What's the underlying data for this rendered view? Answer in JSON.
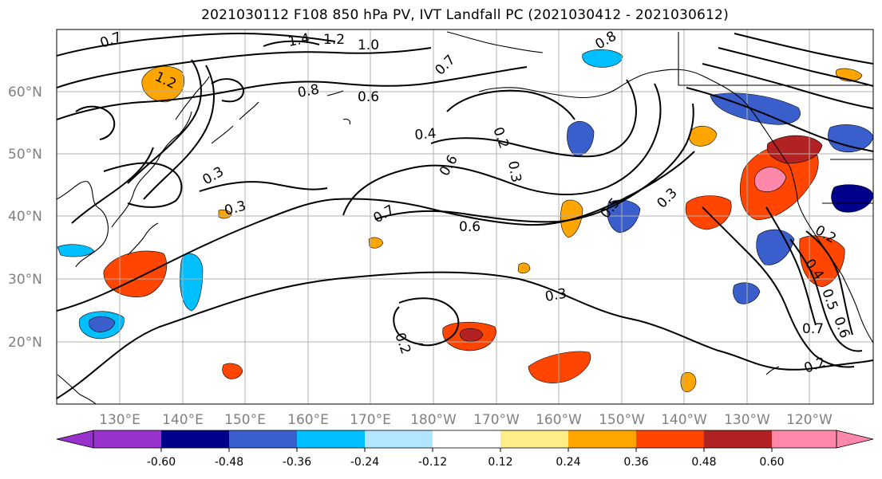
{
  "title": "2021030112 F108 850 hPa PV, IVT Landfall PC (2021030412 - 2021030612)",
  "lat_labels": [
    "60°N",
    "50°N",
    "40°N",
    "30°N",
    "20°N"
  ],
  "lon_labels": [
    "130°E",
    "140°E",
    "150°E",
    "160°E",
    "170°E",
    "180°W",
    "170°W",
    "160°W",
    "150°W",
    "140°W",
    "130°W",
    "120°W"
  ],
  "colorbar": {
    "tick_labels": [
      "-0.60",
      "-0.48",
      "-0.36",
      "-0.24",
      "-0.12",
      "0.12",
      "0.24",
      "0.36",
      "0.48",
      "0.60"
    ],
    "colors": [
      "#9932CC",
      "#00008B",
      "#3A5FCD",
      "#00BFFF",
      "#B2E5FF",
      "#FFFFFF",
      "#FFEE88",
      "#FFA500",
      "#FF4500",
      "#B22222",
      "#FF88AA"
    ]
  },
  "contour_labels": [
    "0.7",
    "1.4",
    "1.2",
    "1.0",
    "0.8",
    "1.2",
    "0.8",
    "0.6",
    "0.7",
    "0.3",
    "0.3",
    "0.4",
    "0.2",
    "0.6",
    "0.3",
    "0.7",
    "0.6",
    "0.5",
    "0.3",
    "0.2",
    "0.7",
    "0.5",
    "0.6",
    "0.2",
    "0.3",
    "0.2",
    "0.4"
  ]
}
